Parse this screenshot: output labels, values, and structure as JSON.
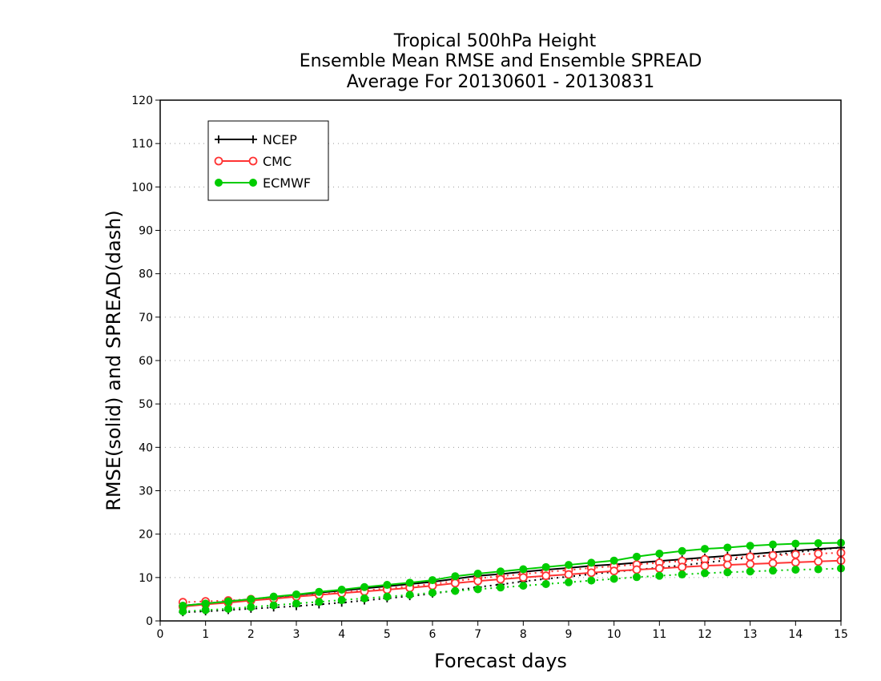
{
  "chart_data": {
    "type": "line",
    "title": [
      "Tropical 500hPa Height",
      "Ensemble Mean RMSE and Ensemble SPREAD",
      "Average For 20130601 - 20130831"
    ],
    "xlabel": "Forecast days",
    "ylabel": "RMSE(solid) and SPREAD(dash)",
    "xlim": [
      0,
      15
    ],
    "ylim": [
      0,
      120
    ],
    "xticks": [
      "0",
      "1",
      "2",
      "3",
      "4",
      "5",
      "6",
      "7",
      "8",
      "9",
      "10",
      "11",
      "12",
      "13",
      "14",
      "15"
    ],
    "yticks": [
      "0",
      "10",
      "20",
      "30",
      "40",
      "50",
      "60",
      "70",
      "80",
      "90",
      "100",
      "110",
      "120"
    ],
    "grid": true,
    "legend_position": "top-left",
    "x": [
      0.5,
      1,
      1.5,
      2,
      2.5,
      3,
      3.5,
      4,
      4.5,
      5,
      5.5,
      6,
      6.5,
      7,
      7.5,
      8,
      8.5,
      9,
      9.5,
      10,
      10.5,
      11,
      11.5,
      12,
      12.5,
      13,
      13.5,
      14,
      14.5,
      15
    ],
    "series": [
      {
        "name": "NCEP",
        "color": "#000000",
        "marker": "plus",
        "rmse": [
          3.5,
          4.0,
          4.5,
          5.0,
          5.5,
          6.0,
          6.5,
          7.0,
          7.5,
          8.0,
          8.5,
          9.0,
          9.7,
          10.4,
          10.8,
          11.3,
          11.8,
          12.2,
          12.7,
          13.0,
          13.4,
          13.8,
          14.2,
          14.6,
          15.0,
          15.4,
          15.8,
          16.2,
          16.6,
          16.9
        ],
        "spread": [
          2.0,
          2.2,
          2.5,
          2.8,
          3.1,
          3.4,
          3.8,
          4.2,
          4.7,
          5.2,
          5.7,
          6.3,
          7.0,
          7.8,
          8.4,
          9.1,
          9.7,
          10.2,
          10.8,
          11.3,
          11.8,
          12.3,
          12.8,
          13.4,
          14.0,
          14.6,
          15.2,
          15.8,
          16.4,
          16.9
        ]
      },
      {
        "name": "CMC",
        "color": "#ff3333",
        "marker": "open-circle",
        "rmse": [
          3.3,
          3.8,
          4.2,
          4.7,
          5.1,
          5.6,
          6.0,
          6.4,
          6.8,
          7.2,
          7.6,
          8.1,
          8.7,
          9.2,
          9.6,
          10.0,
          10.4,
          10.7,
          11.1,
          11.5,
          11.8,
          12.1,
          12.4,
          12.7,
          12.9,
          13.1,
          13.3,
          13.5,
          13.7,
          13.9
        ],
        "spread": [
          4.3,
          4.5,
          4.7,
          5.0,
          5.3,
          5.7,
          6.1,
          6.6,
          7.0,
          7.5,
          8.0,
          8.5,
          9.2,
          9.8,
          10.3,
          10.8,
          11.3,
          11.7,
          12.2,
          12.6,
          13.0,
          13.4,
          13.8,
          14.2,
          14.5,
          14.8,
          15.1,
          15.3,
          15.5,
          15.7
        ]
      },
      {
        "name": "ECMWF",
        "color": "#00cc00",
        "marker": "filled-circle",
        "rmse": [
          3.5,
          4.0,
          4.5,
          5.0,
          5.6,
          6.1,
          6.7,
          7.2,
          7.8,
          8.3,
          8.8,
          9.4,
          10.3,
          10.9,
          11.4,
          11.9,
          12.4,
          12.9,
          13.4,
          13.9,
          14.8,
          15.5,
          16.1,
          16.6,
          16.9,
          17.3,
          17.6,
          17.8,
          17.9,
          18.0
        ],
        "spread": [
          2.2,
          2.5,
          2.8,
          3.2,
          3.6,
          4.0,
          4.4,
          4.8,
          5.2,
          5.6,
          6.0,
          6.5,
          6.9,
          7.3,
          7.7,
          8.1,
          8.5,
          8.9,
          9.3,
          9.7,
          10.1,
          10.4,
          10.7,
          11.0,
          11.2,
          11.4,
          11.6,
          11.8,
          11.9,
          12.1
        ]
      }
    ]
  }
}
